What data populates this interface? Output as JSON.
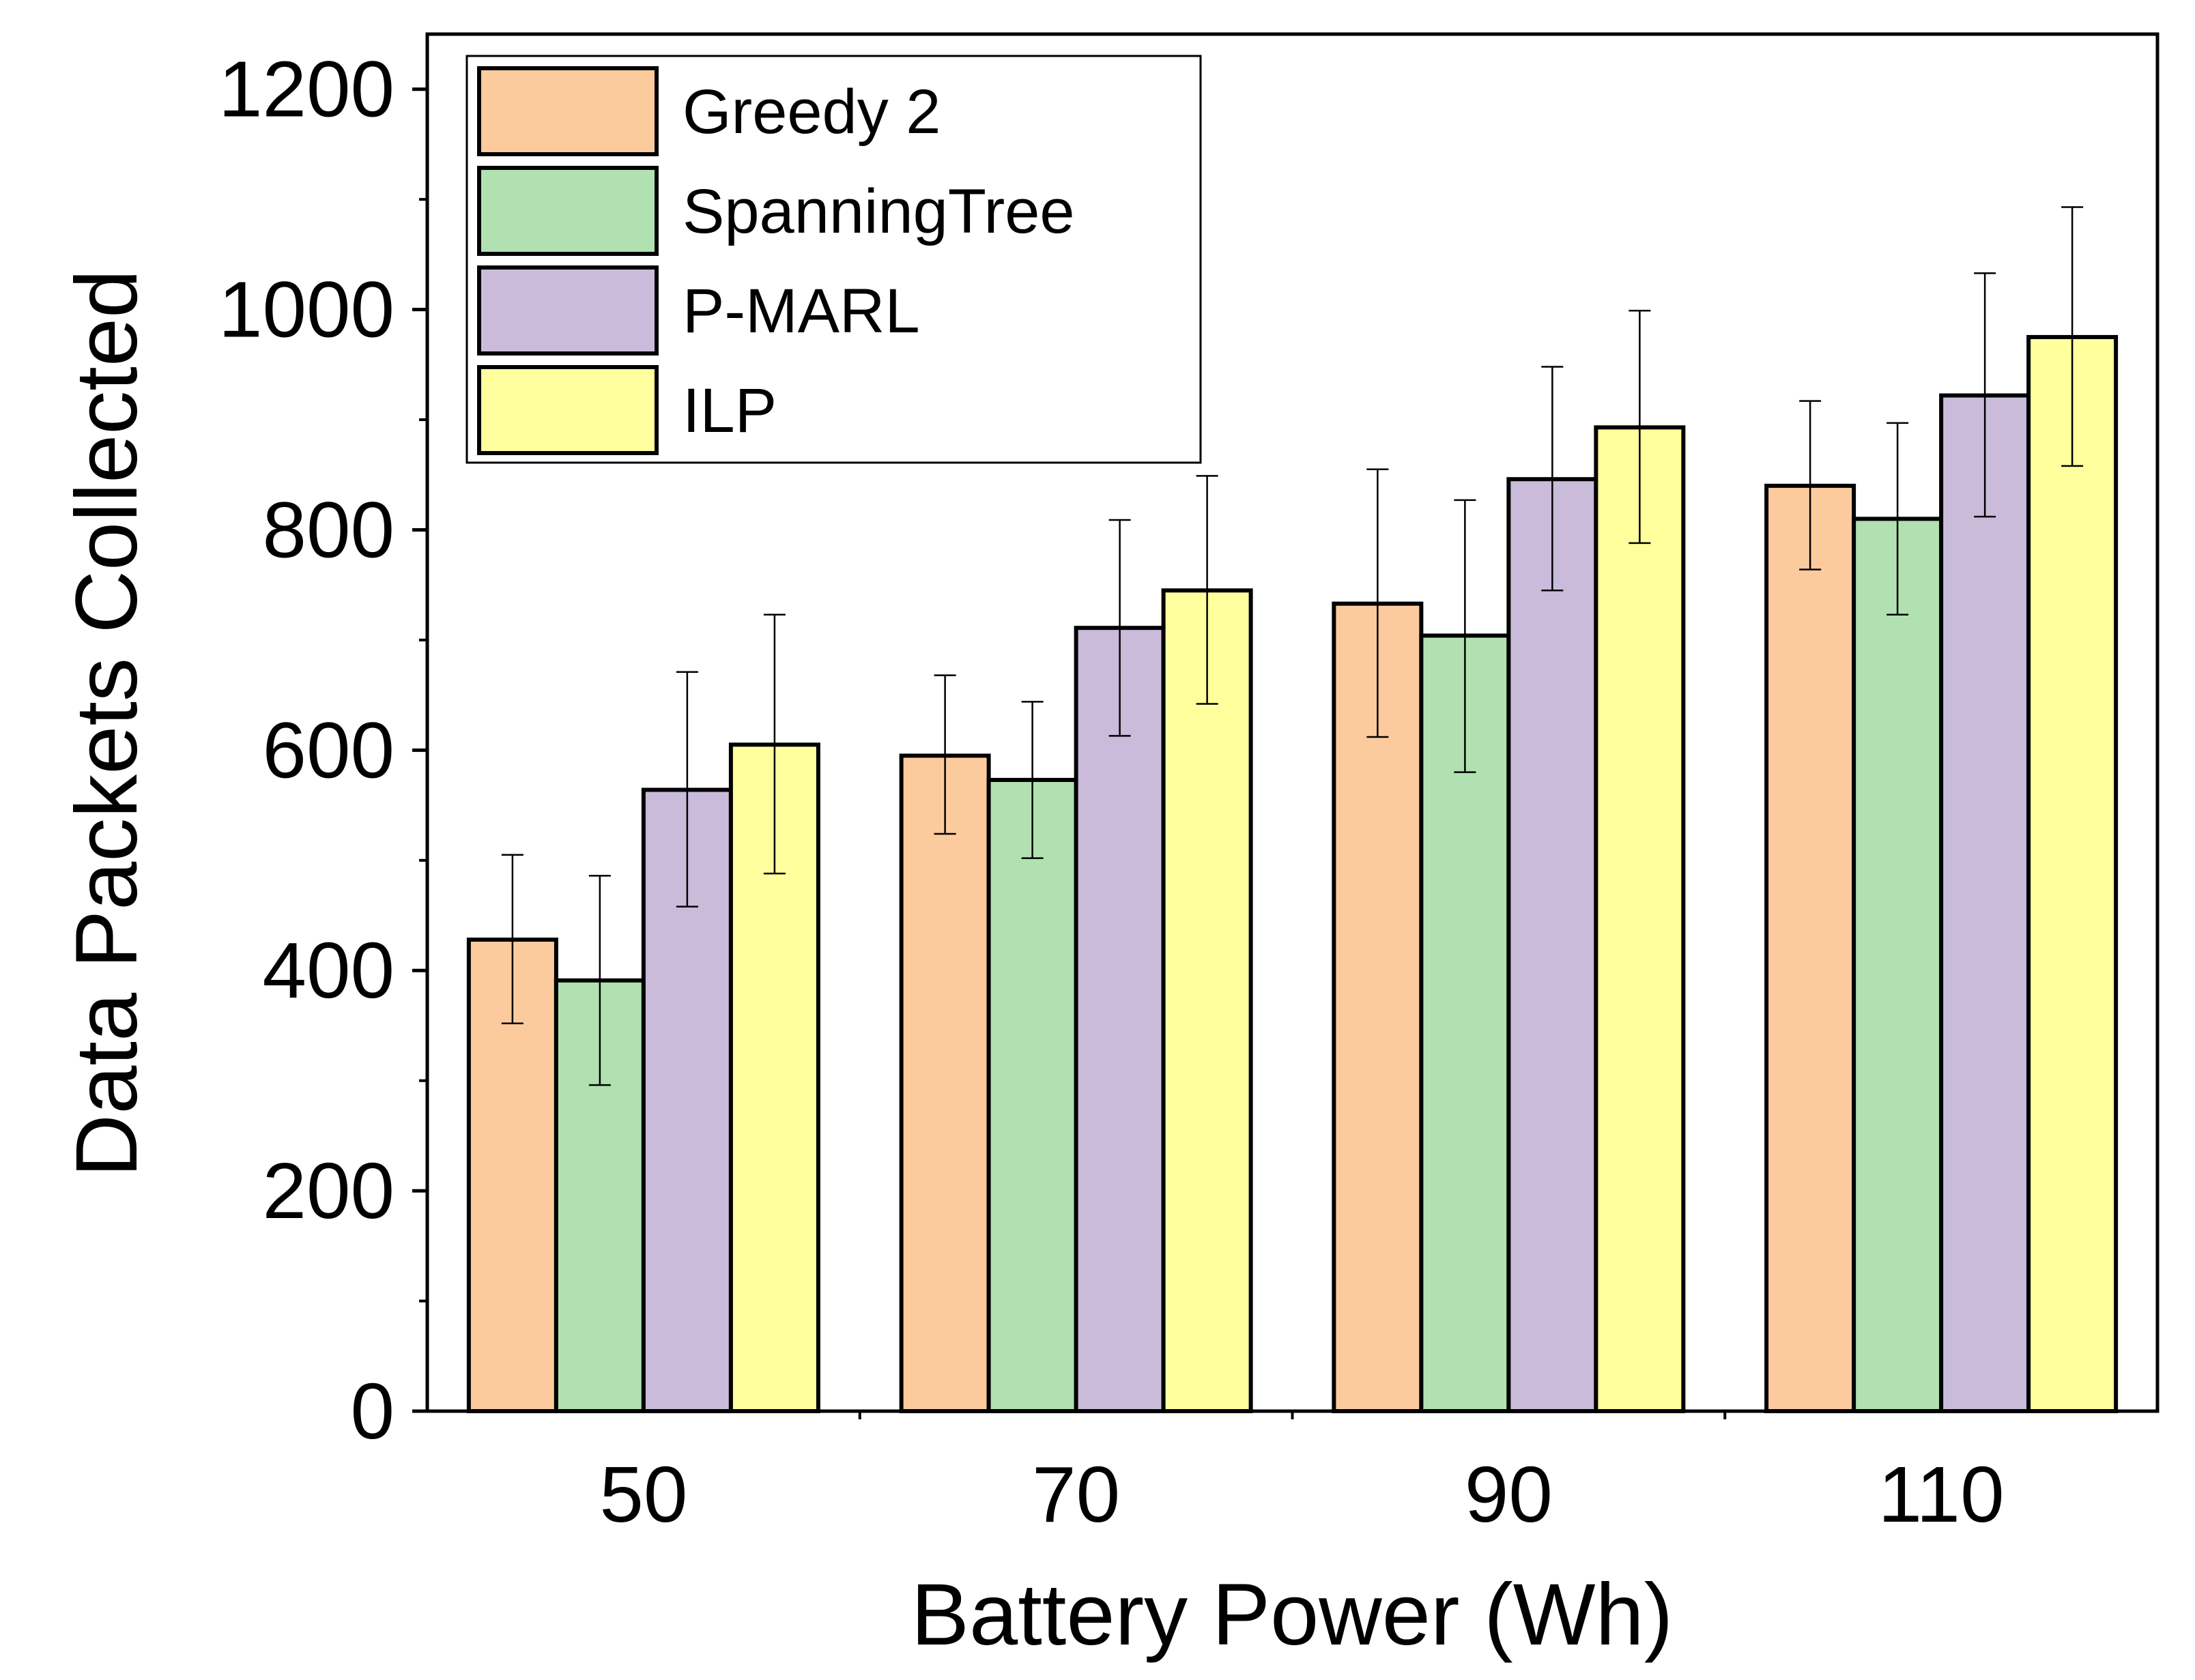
{
  "chart_data": {
    "type": "bar",
    "title": "",
    "xlabel": "Battery Power (Wh)",
    "ylabel": "Data Packets Collected",
    "categories": [
      "50",
      "70",
      "90",
      "110"
    ],
    "ylim": [
      0,
      1250
    ],
    "yticks": [
      0,
      200,
      400,
      600,
      800,
      1000,
      1200
    ],
    "grid": false,
    "legend_position": "top-left",
    "series": [
      {
        "name": "Greedy 2",
        "color": "#FBCB9E",
        "values": [
          428,
          595,
          733,
          840
        ],
        "errors": [
          [
            352,
            505
          ],
          [
            524,
            668
          ],
          [
            612,
            855
          ],
          [
            764,
            917
          ]
        ]
      },
      {
        "name": "SpanningTree",
        "color": "#B1E1B1",
        "values": [
          391,
          573,
          704,
          810
        ],
        "errors": [
          [
            296,
            486
          ],
          [
            502,
            644
          ],
          [
            580,
            827
          ],
          [
            723,
            897
          ]
        ]
      },
      {
        "name": "P-MARL",
        "color": "#CABBDB",
        "values": [
          564,
          711,
          846,
          922
        ],
        "errors": [
          [
            458,
            671
          ],
          [
            613,
            809
          ],
          [
            745,
            948
          ],
          [
            812,
            1033
          ]
        ]
      },
      {
        "name": "ILP",
        "color": "#FFFF9E",
        "values": [
          605,
          745,
          893,
          975
        ],
        "errors": [
          [
            488,
            723
          ],
          [
            642,
            849
          ],
          [
            788,
            999
          ],
          [
            858,
            1093
          ]
        ]
      }
    ]
  }
}
